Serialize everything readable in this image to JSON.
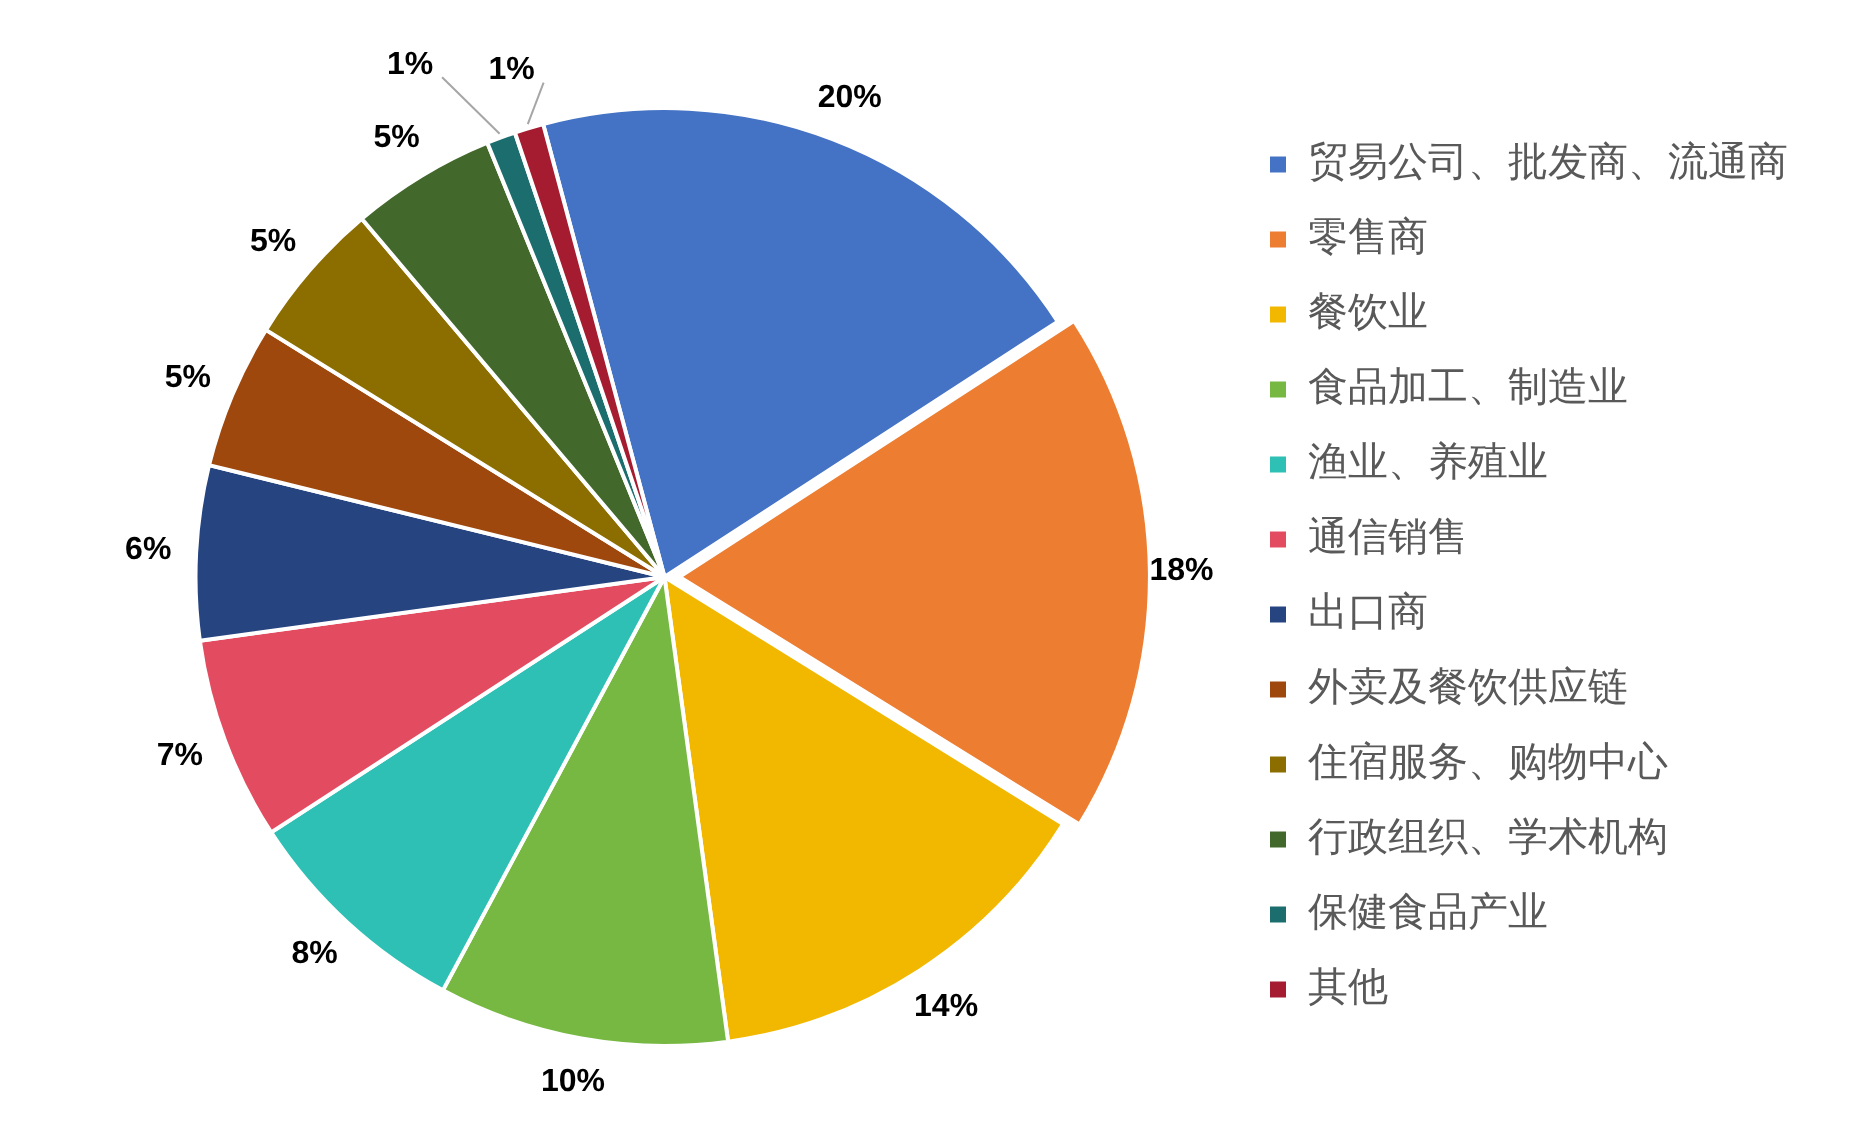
{
  "chart_data": {
    "type": "pie",
    "categories": [
      "贸易公司、批发商、流通商",
      "零售商",
      "餐饮业",
      "食品加工、制造业",
      "渔业、养殖业",
      "通信销售",
      "出口商",
      "外卖及餐饮供应链",
      "住宿服务、购物中心",
      "行政组织、学术机构",
      "保健食品产业",
      "其他"
    ],
    "values": [
      20,
      18,
      14,
      10,
      8,
      7,
      6,
      5,
      5,
      5,
      1,
      1
    ],
    "colors": [
      "#4472c4",
      "#ed7d31",
      "#f2b800",
      "#77b843",
      "#2ec0b4",
      "#e34c60",
      "#264480",
      "#9e480e",
      "#8c6d00",
      "#43682b",
      "#1c6e6e",
      "#a51c30"
    ],
    "value_labels": [
      "20%",
      "18%",
      "14%",
      "10%",
      "8%",
      "7%",
      "6%",
      "5%",
      "5%",
      "5%",
      "1%",
      "1%"
    ],
    "legend": "right"
  }
}
